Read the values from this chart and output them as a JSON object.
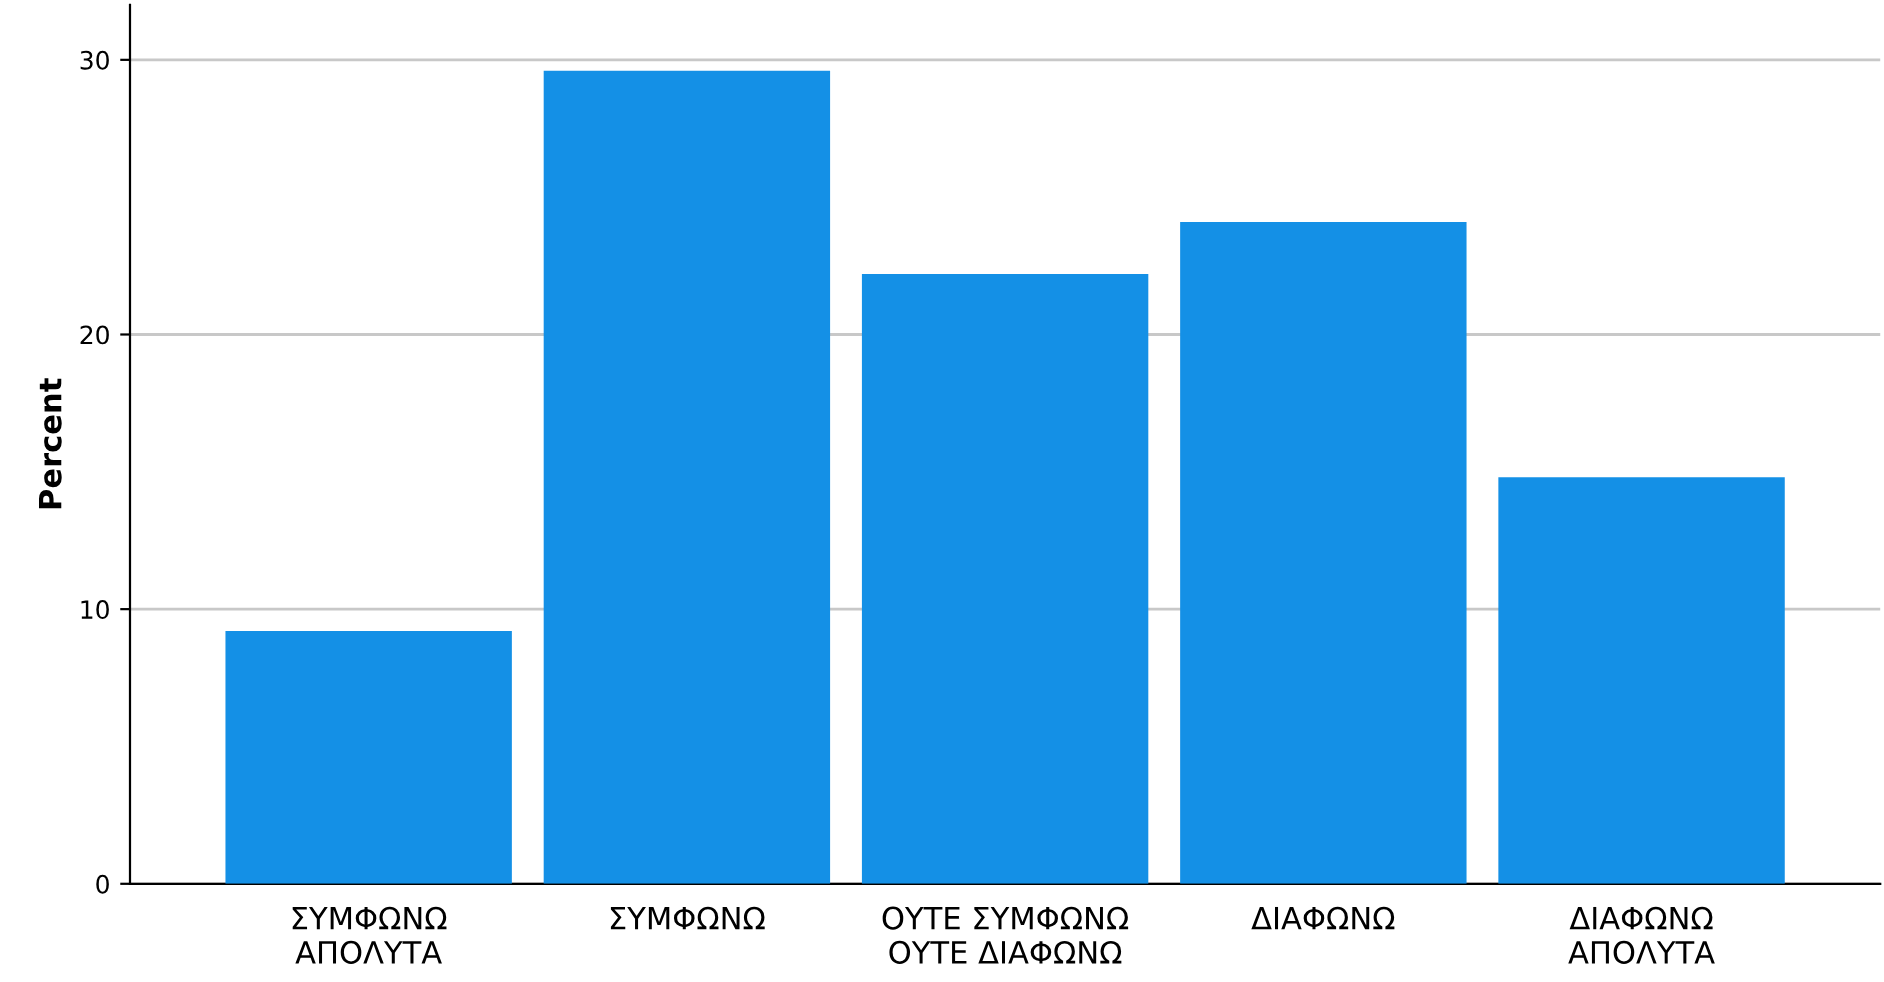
{
  "chart_data": {
    "type": "bar",
    "ylabel": "Percent",
    "categories": [
      "ΣΥΜΦΩΝΩ\nΑΠΟΛΥΤΑ",
      "ΣΥΜΦΩΝΩ",
      "ΟΥΤΕ ΣΥΜΦΩΝΩ\nΟΥΤΕ ΔΙΑΦΩΝΩ",
      "ΔΙΑΦΩΝΩ",
      "ΔΙΑΦΩΝΩ\nΑΠΟΛΥΤΑ"
    ],
    "values": [
      9.2,
      29.6,
      22.2,
      24.1,
      14.8
    ],
    "color": "#1490e6",
    "ylim": [
      0,
      32
    ],
    "yticks": [
      0,
      10,
      20,
      30
    ],
    "grid": "y"
  }
}
